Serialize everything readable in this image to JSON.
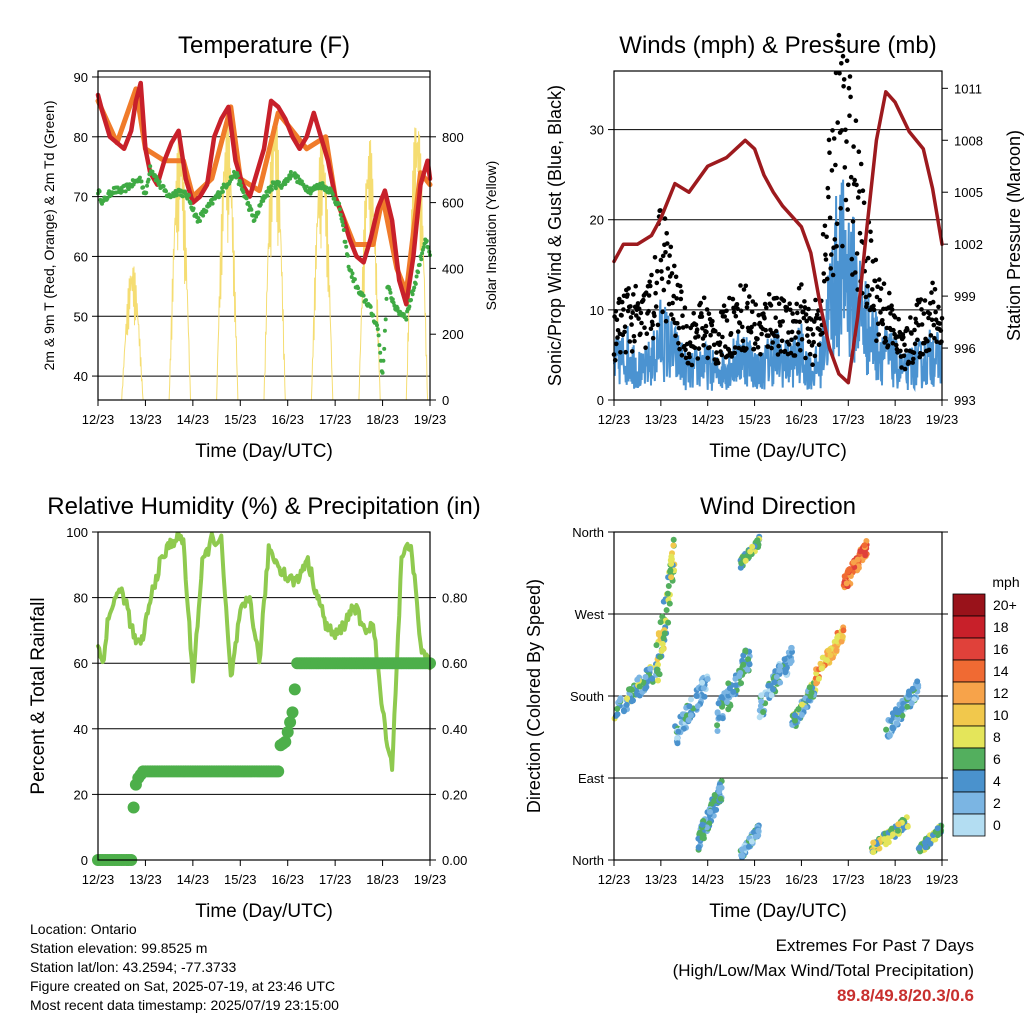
{
  "chart_data": [
    {
      "type": "line",
      "title": "Temperature (F)",
      "xlabel": "Time (Day/UTC)",
      "ylabel": "2m & 9m T (Red, Orange) & 2m Td (Green)",
      "y2label": "Solar Insolation (Yellow)",
      "x_ticks": [
        "12/23",
        "13/23",
        "14/23",
        "15/23",
        "16/23",
        "17/23",
        "18/23",
        "19/23"
      ],
      "ylim": [
        36,
        91
      ],
      "y_ticks": [
        "40",
        "50",
        "60",
        "70",
        "80",
        "90"
      ],
      "y2lim": [
        0,
        1000
      ],
      "y2_ticks": [
        "0",
        "200",
        "400",
        "600",
        "800"
      ],
      "grid": true,
      "series": [
        {
          "name": "2m T",
          "color": "#c8202a",
          "x": [
            0,
            0.1,
            0.25,
            0.4,
            0.55,
            0.7,
            0.8,
            0.9,
            1.0,
            1.1,
            1.25,
            1.4,
            1.55,
            1.7,
            1.85,
            2.0,
            2.15,
            2.3,
            2.45,
            2.6,
            2.75,
            2.9,
            3.05,
            3.2,
            3.35,
            3.5,
            3.65,
            3.8,
            3.95,
            4.1,
            4.25,
            4.4,
            4.55,
            4.7,
            4.85,
            5.0,
            5.15,
            5.3,
            5.45,
            5.6,
            5.75,
            5.9,
            6.05,
            6.2,
            6.35,
            6.5,
            6.65,
            6.8,
            6.95,
            7.0
          ],
          "y": [
            87,
            84,
            80,
            79,
            78,
            81,
            86,
            89,
            78,
            74,
            72,
            76,
            79,
            81,
            73,
            69,
            70,
            72,
            80,
            83,
            85,
            76,
            72,
            70,
            74,
            78,
            86,
            85,
            83,
            80,
            78,
            80,
            84,
            80,
            76,
            70,
            67,
            63,
            60,
            59,
            63,
            68,
            71,
            66,
            56,
            52,
            60,
            72,
            76,
            73
          ]
        },
        {
          "name": "9m T",
          "color": "#f07b2a",
          "x": [
            0,
            0.4,
            0.8,
            1.0,
            1.4,
            1.8,
            2.0,
            2.4,
            2.8,
            3.0,
            3.4,
            3.8,
            4.0,
            4.4,
            4.8,
            5.0,
            5.4,
            5.8,
            6.0,
            6.3,
            6.5,
            6.8,
            7.0
          ],
          "y": [
            86,
            79,
            88,
            78,
            76,
            76,
            70,
            73,
            85,
            73,
            71,
            84,
            82,
            78,
            80,
            70,
            62,
            62,
            70,
            58,
            54,
            74,
            72
          ]
        },
        {
          "name": "2m Td",
          "color": "#3faa44",
          "x": [
            0,
            0.1,
            0.3,
            0.5,
            0.7,
            0.9,
            1.0,
            1.1,
            1.3,
            1.5,
            1.7,
            1.9,
            2.1,
            2.3,
            2.5,
            2.7,
            2.9,
            3.1,
            3.3,
            3.5,
            3.7,
            3.9,
            4.1,
            4.3,
            4.5,
            4.7,
            4.9,
            5.1,
            5.3,
            5.5,
            5.7,
            5.9,
            6.0,
            6.1,
            6.3,
            6.5,
            6.7,
            6.9,
            7.0
          ],
          "y": [
            71,
            69,
            71,
            71,
            72,
            73,
            70,
            75,
            72,
            70,
            71,
            70,
            66,
            68,
            70,
            72,
            74,
            70,
            66,
            70,
            72,
            72,
            74,
            72,
            71,
            72,
            71,
            68,
            58,
            54,
            52,
            48,
            40,
            55,
            51,
            50,
            56,
            63,
            60
          ]
        },
        {
          "name": "Solar Insolation",
          "color": "#f5dd72",
          "axis": "y2",
          "days": [
            0,
            1,
            2,
            3,
            4,
            5,
            6
          ],
          "peaks": [
            420,
            820,
            870,
            900,
            820,
            800,
            880
          ]
        }
      ]
    },
    {
      "type": "scatter",
      "title": "Winds (mph) & Pressure (mb)",
      "xlabel": "Time (Day/UTC)",
      "ylabel": "Sonic/Prop Wind & Gust (Blue, Black)",
      "y2label": "Station Pressure (Maroon)",
      "x_ticks": [
        "12/23",
        "13/23",
        "14/23",
        "15/23",
        "16/23",
        "17/23",
        "18/23",
        "19/23"
      ],
      "ylim": [
        0,
        36.5
      ],
      "y_ticks": [
        "0",
        "10",
        "20",
        "30"
      ],
      "y2lim": [
        993,
        1012
      ],
      "y2_ticks": [
        "993",
        "996",
        "999",
        "1002",
        "1005",
        "1008",
        "1011"
      ],
      "grid": true,
      "series": [
        {
          "name": "Sonic/Prop Wind",
          "color": "#4b93d1",
          "x": [
            0,
            0.3,
            0.6,
            0.9,
            1.0,
            1.3,
            1.6,
            1.9,
            2.2,
            2.5,
            2.8,
            3.1,
            3.4,
            3.7,
            4.0,
            4.2,
            4.4,
            4.6,
            4.8,
            5.0,
            5.2,
            5.4,
            5.6,
            5.8,
            6.0,
            6.2,
            6.4,
            6.6,
            6.8,
            7.0
          ],
          "y": [
            4,
            5,
            3,
            5,
            7,
            5,
            3,
            4,
            3,
            4,
            5,
            3,
            5,
            4,
            5,
            3,
            4,
            10,
            15,
            14,
            11,
            8,
            6,
            5,
            4,
            3,
            4,
            4,
            5,
            4
          ]
        },
        {
          "name": "Gust",
          "color": "#000000",
          "x": [
            0,
            0.3,
            0.6,
            0.9,
            1.0,
            1.3,
            1.6,
            1.9,
            2.2,
            2.5,
            2.8,
            3.1,
            3.4,
            3.7,
            4.0,
            4.2,
            4.4,
            4.6,
            4.8,
            5.0,
            5.2,
            5.4,
            5.6,
            5.8,
            6.0,
            6.2,
            6.4,
            6.6,
            6.8,
            7.0
          ],
          "y": [
            7,
            9,
            8,
            11,
            16,
            10,
            6,
            8,
            6,
            8,
            9,
            7,
            9,
            7,
            9,
            6,
            9,
            20,
            28,
            26,
            20,
            14,
            11,
            9,
            7,
            5,
            7,
            8,
            9,
            8
          ]
        },
        {
          "name": "Station Pressure",
          "color": "#9d1a1e",
          "axis": "y2",
          "x": [
            0,
            0.2,
            0.5,
            0.8,
            1.0,
            1.3,
            1.6,
            2.0,
            2.4,
            2.8,
            3.0,
            3.2,
            3.4,
            3.6,
            4.0,
            4.2,
            4.4,
            4.6,
            4.8,
            5.0,
            5.2,
            5.4,
            5.6,
            5.8,
            6.0,
            6.3,
            6.6,
            6.8,
            7.0
          ],
          "y": [
            1001,
            1002,
            1002,
            1002.5,
            1003.5,
            1005.5,
            1005,
            1006.5,
            1007,
            1008,
            1007.5,
            1006,
            1005,
            1004.2,
            1003,
            1001.5,
            998.5,
            996,
            994.5,
            994,
            997.8,
            1003,
            1008,
            1010.8,
            1010.2,
            1008.5,
            1007.5,
            1005.2,
            1002
          ]
        }
      ]
    },
    {
      "type": "line",
      "title": "Relative Humidity (%) & Precipitation (in)",
      "xlabel": "Time (Day/UTC)",
      "ylabel": "Percent & Total Rainfall",
      "x_ticks": [
        "12/23",
        "13/23",
        "14/23",
        "15/23",
        "16/23",
        "17/23",
        "18/23",
        "19/23"
      ],
      "ylim": [
        0,
        100
      ],
      "y_ticks": [
        "0",
        "20",
        "40",
        "60",
        "80",
        "100"
      ],
      "y2lim": [
        0,
        1.0
      ],
      "y2_ticks": [
        "0.00",
        "0.20",
        "0.40",
        "0.60",
        "0.80"
      ],
      "grid": true,
      "series": [
        {
          "name": "Relative Humidity",
          "color": "#8fca4f",
          "x": [
            0,
            0.1,
            0.2,
            0.35,
            0.5,
            0.6,
            0.75,
            0.9,
            1.0,
            1.15,
            1.3,
            1.5,
            1.7,
            1.8,
            2.0,
            2.2,
            2.4,
            2.6,
            2.8,
            3.0,
            3.2,
            3.4,
            3.6,
            3.8,
            4.0,
            4.2,
            4.4,
            4.6,
            4.8,
            5.0,
            5.2,
            5.4,
            5.6,
            5.8,
            6.0,
            6.2,
            6.4,
            6.6,
            6.8,
            7.0
          ],
          "y": [
            65,
            60,
            72,
            80,
            82,
            78,
            68,
            65,
            72,
            82,
            90,
            96,
            99,
            97,
            55,
            90,
            98,
            97,
            55,
            75,
            80,
            60,
            95,
            90,
            86,
            85,
            92,
            82,
            72,
            68,
            72,
            78,
            70,
            72,
            45,
            28,
            92,
            97,
            65,
            60
          ]
        },
        {
          "name": "Total Precipitation",
          "color": "#4daf4a",
          "axis": "y2",
          "x": [
            0,
            0.7,
            0.75,
            0.8,
            0.85,
            0.95,
            3.8,
            3.85,
            3.95,
            4.1,
            4.15,
            4.2,
            7.0
          ],
          "y": [
            0.0,
            0.0,
            0.16,
            0.23,
            0.25,
            0.27,
            0.27,
            0.35,
            0.36,
            0.45,
            0.52,
            0.6,
            0.6
          ]
        }
      ]
    },
    {
      "type": "scatter",
      "title": "Wind Direction",
      "xlabel": "Time (Day/UTC)",
      "ylabel": "Direction (Colored By Speed)",
      "x_ticks": [
        "12/23",
        "13/23",
        "14/23",
        "15/23",
        "16/23",
        "17/23",
        "18/23",
        "19/23"
      ],
      "y_ticks": [
        "North",
        "East",
        "South",
        "West",
        "North"
      ],
      "ylim": [
        0,
        360
      ],
      "grid": true,
      "colorbar": {
        "unit": "mph",
        "labels": [
          "20+",
          "18",
          "16",
          "14",
          "12",
          "10",
          "8",
          "6",
          "4",
          "2",
          "0"
        ],
        "colors": [
          "#99121a",
          "#c8202a",
          "#e0413a",
          "#f06a33",
          "#f7a34a",
          "#f1c84c",
          "#e4e55a",
          "#53af5e",
          "#4a92cd",
          "#7bb5e3",
          "#b3ddf2"
        ]
      },
      "clusters": [
        {
          "x": [
            0.0,
            0.9
          ],
          "dir": [
            150,
            220
          ],
          "speed": 5
        },
        {
          "x": [
            0.9,
            1.3
          ],
          "dir": [
            180,
            360
          ],
          "speed": 7
        },
        {
          "x": [
            1.3,
            2.0
          ],
          "dir": [
            120,
            210
          ],
          "speed": 3
        },
        {
          "x": [
            1.8,
            2.3
          ],
          "dir": [
            10,
            90
          ],
          "speed": 4
        },
        {
          "x": [
            2.2,
            2.9
          ],
          "dir": [
            140,
            240
          ],
          "speed": 4
        },
        {
          "x": [
            2.7,
            3.1
          ],
          "dir": [
            0,
            40
          ],
          "speed": 3
        },
        {
          "x": [
            2.7,
            3.1
          ],
          "dir": [
            320,
            355
          ],
          "speed": 6
        },
        {
          "x": [
            3.1,
            3.8
          ],
          "dir": [
            150,
            240
          ],
          "speed": 3
        },
        {
          "x": [
            3.8,
            4.3
          ],
          "dir": [
            140,
            200
          ],
          "speed": 5
        },
        {
          "x": [
            4.3,
            4.9
          ],
          "dir": [
            190,
            260
          ],
          "speed": 11
        },
        {
          "x": [
            4.9,
            5.4
          ],
          "dir": [
            290,
            355
          ],
          "speed": 14
        },
        {
          "x": [
            5.5,
            6.3
          ],
          "dir": [
            5,
            50
          ],
          "speed": 7
        },
        {
          "x": [
            5.8,
            6.5
          ],
          "dir": [
            130,
            200
          ],
          "speed": 3
        },
        {
          "x": [
            6.5,
            7.0
          ],
          "dir": [
            5,
            40
          ],
          "speed": 6
        }
      ]
    }
  ],
  "info": {
    "location": "Location: Ontario",
    "elevation": "Station elevation: 99.8525 m",
    "latlon": "Station lat/lon: 43.2594; -77.3733",
    "created": "Figure created on Sat, 2025-07-19, at 23:46 UTC",
    "timestamp": "Most recent data timestamp: 2025/07/19 23:15:00"
  },
  "extremes": {
    "title": "Extremes For Past 7 Days",
    "subtitle": "(High/Low/Max Wind/Total Precipitation)",
    "values": "89.8/49.8/20.3/0.6"
  }
}
